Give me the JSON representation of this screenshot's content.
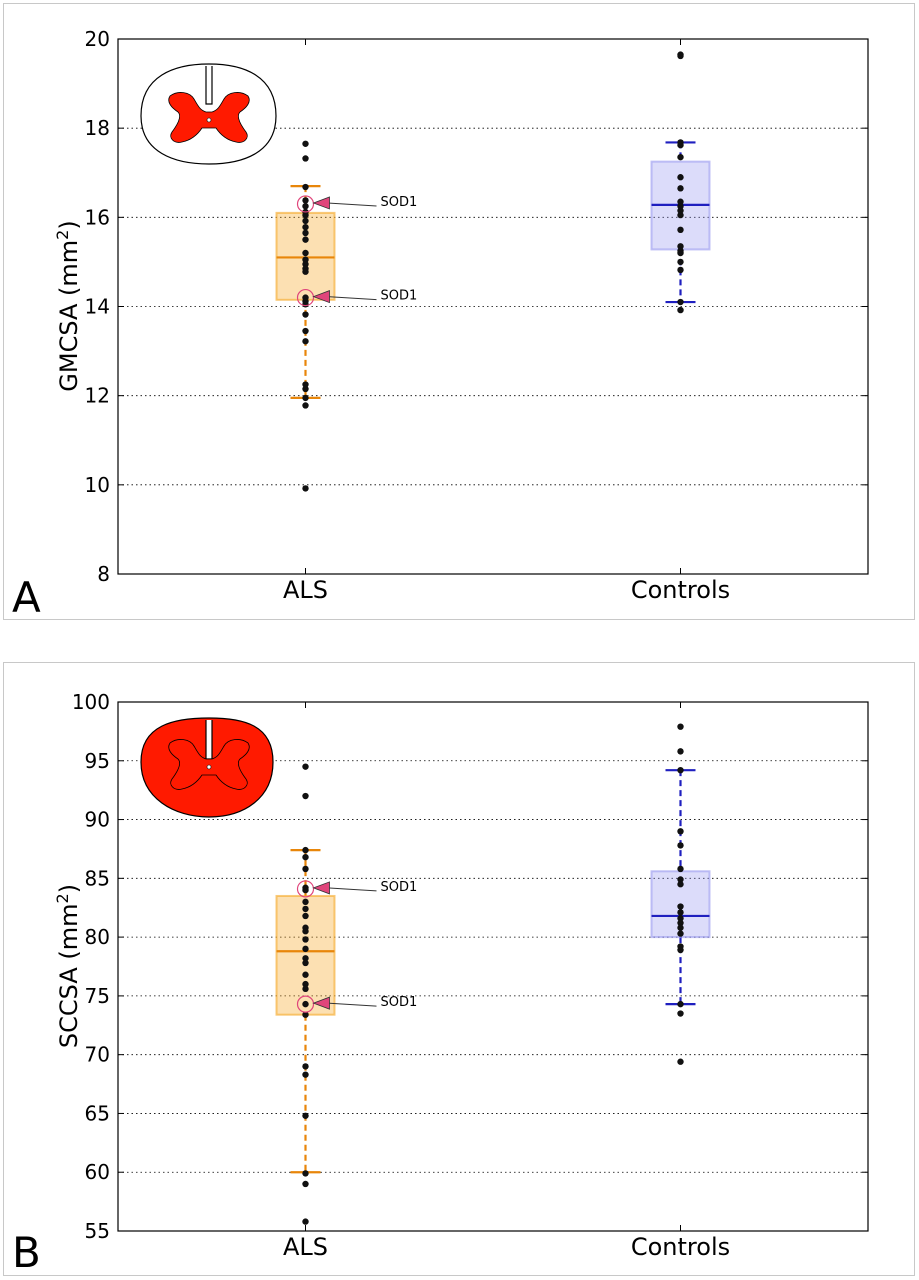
{
  "chart_data": [
    {
      "type": "box",
      "panel_label": "A",
      "ylabel": "GMCSA (mm",
      "ylabel_sup": "2",
      "ylabel_close": ")",
      "ylim": [
        8,
        20
      ],
      "yticks": [
        8,
        10,
        12,
        14,
        16,
        18,
        20
      ],
      "grid": true,
      "categories": [
        "ALS",
        "Controls"
      ],
      "boxes": [
        {
          "category": "ALS",
          "q1": 14.15,
          "median": 15.1,
          "q3": 16.1,
          "whisker_low": 11.95,
          "whisker_high": 16.7,
          "color": "#f5a623",
          "line_color": "#e8860a",
          "points": [
            17.65,
            17.32,
            16.68,
            16.38,
            16.25,
            16.12,
            16.05,
            15.92,
            15.78,
            15.65,
            15.5,
            15.2,
            15.05,
            14.95,
            14.85,
            14.78,
            14.2,
            14.12,
            14.05,
            13.82,
            13.45,
            13.22,
            12.25,
            12.15,
            11.95,
            11.78,
            9.92
          ]
        },
        {
          "category": "Controls",
          "q1": 15.28,
          "median": 16.28,
          "q3": 17.25,
          "whisker_low": 14.1,
          "whisker_high": 17.68,
          "color": "#9a9af0",
          "line_color": "#1f1fbf",
          "points": [
            19.65,
            19.62,
            17.68,
            17.62,
            17.35,
            16.9,
            16.65,
            16.35,
            16.25,
            16.15,
            16.05,
            15.72,
            15.35,
            15.25,
            15.2,
            15.0,
            14.82,
            14.1,
            13.92
          ]
        }
      ],
      "annotations": [
        {
          "text": "SOD1",
          "category": "ALS",
          "y": 16.3
        },
        {
          "text": "SOD1",
          "category": "ALS",
          "y": 14.2
        }
      ]
    },
    {
      "type": "box",
      "panel_label": "B",
      "ylabel": "SCCSA (mm",
      "ylabel_sup": "2",
      "ylabel_close": ")",
      "ylim": [
        55,
        100
      ],
      "yticks": [
        55,
        60,
        65,
        70,
        75,
        80,
        85,
        90,
        95,
        100
      ],
      "grid": true,
      "categories": [
        "ALS",
        "Controls"
      ],
      "boxes": [
        {
          "category": "ALS",
          "q1": 73.4,
          "median": 78.8,
          "q3": 83.5,
          "whisker_low": 60.0,
          "whisker_high": 87.4,
          "color": "#f5a623",
          "line_color": "#e8860a",
          "points": [
            94.5,
            92.0,
            87.4,
            86.8,
            85.8,
            84.2,
            84.0,
            83.0,
            82.4,
            81.8,
            80.8,
            80.5,
            79.8,
            79.0,
            78.2,
            77.8,
            76.8,
            76.0,
            75.6,
            74.3,
            73.4,
            69.0,
            68.3,
            64.8,
            59.9,
            59.0,
            55.8
          ],
          "color_name": "orange"
        },
        {
          "category": "Controls",
          "q1": 80.0,
          "median": 81.8,
          "q3": 85.6,
          "whisker_low": 74.3,
          "whisker_high": 94.2,
          "color": "#9a9af0",
          "line_color": "#1f1fbf",
          "points": [
            97.9,
            95.8,
            94.2,
            89.0,
            87.8,
            85.8,
            84.9,
            84.5,
            82.6,
            82.1,
            81.6,
            81.2,
            80.8,
            80.3,
            79.2,
            78.9,
            74.3,
            73.5,
            69.4
          ]
        }
      ],
      "annotations": [
        {
          "text": "SOD1",
          "category": "ALS",
          "y": 84.1
        },
        {
          "text": "SOD1",
          "category": "ALS",
          "y": 74.3
        }
      ]
    }
  ],
  "colors": {
    "als_fill": "#f5a623",
    "controls_fill": "#9a9af0",
    "als_line": "#e8860a",
    "controls_line": "#1f1fbf",
    "marker_red": "#ff1a00",
    "sod1_marker": "#e0457b"
  }
}
